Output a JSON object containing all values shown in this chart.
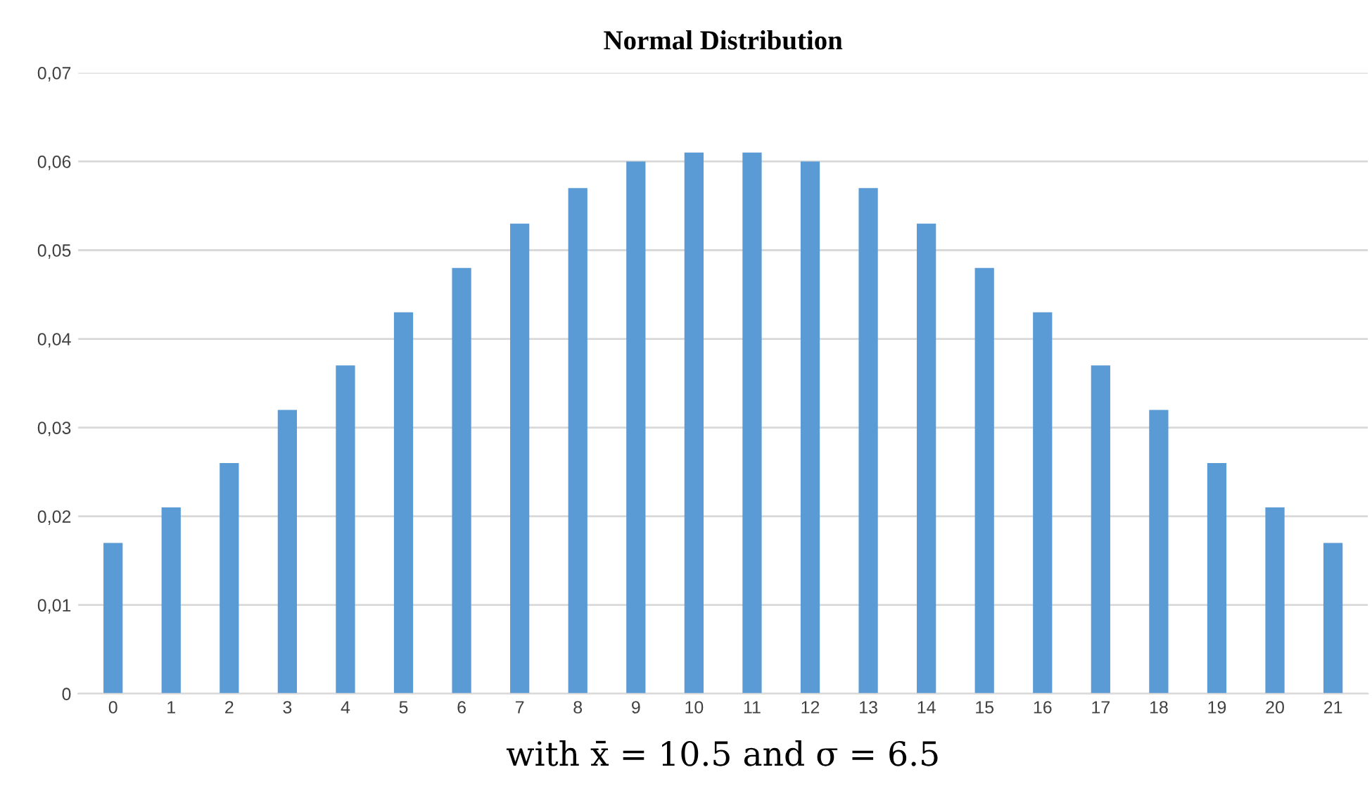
{
  "chart_data": {
    "type": "bar",
    "title": "Normal Distribution",
    "xlabel": "with x̄ = 10.5 and σ = 6.5",
    "categories": [
      "0",
      "1",
      "2",
      "3",
      "4",
      "5",
      "6",
      "7",
      "8",
      "9",
      "10",
      "11",
      "12",
      "13",
      "14",
      "15",
      "16",
      "17",
      "18",
      "19",
      "20",
      "21"
    ],
    "values": [
      0.017,
      0.021,
      0.026,
      0.032,
      0.037,
      0.043,
      0.048,
      0.053,
      0.057,
      0.06,
      0.061,
      0.061,
      0.06,
      0.057,
      0.053,
      0.048,
      0.043,
      0.037,
      0.032,
      0.026,
      0.021,
      0.017
    ],
    "color": "#5b9bd5",
    "ylim": [
      0,
      0.07
    ],
    "yticks": [
      0,
      {
        "value": 0.01,
        "label": "0,01"
      },
      {
        "value": 0.02,
        "label": "0,02"
      },
      {
        "value": 0.03,
        "label": "0,03"
      },
      {
        "value": 0.04,
        "label": "0,04"
      },
      {
        "value": 0.05,
        "label": "0,05"
      },
      {
        "value": 0.06,
        "label": "0,06"
      },
      {
        "value": 0.07,
        "label": "0,07"
      }
    ],
    "grid": "y",
    "legend": false
  }
}
